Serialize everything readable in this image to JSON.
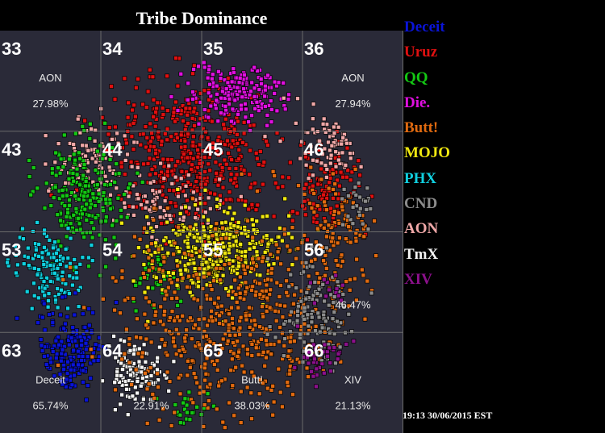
{
  "chart_data": {
    "type": "scatter",
    "title": "Tribe Dominance",
    "grid": {
      "rows": [
        {
          "sectors": [
            {
              "number": "33",
              "tribe": "AON",
              "pct": "27.98%"
            },
            {
              "number": "34",
              "tribe": "",
              "pct": ""
            },
            {
              "number": "35",
              "tribe": "",
              "pct": ""
            },
            {
              "number": "36",
              "tribe": "AON",
              "pct": "27.94%"
            }
          ]
        },
        {
          "sectors": [
            {
              "number": "43",
              "tribe": "",
              "pct": ""
            },
            {
              "number": "44",
              "tribe": "",
              "pct": ""
            },
            {
              "number": "45",
              "tribe": "",
              "pct": ""
            },
            {
              "number": "46",
              "tribe": "",
              "pct": ""
            }
          ]
        },
        {
          "sectors": [
            {
              "number": "53",
              "tribe": "",
              "pct": ""
            },
            {
              "number": "54",
              "tribe": "",
              "pct": ""
            },
            {
              "number": "55",
              "tribe": "",
              "pct": ""
            },
            {
              "number": "56",
              "tribe": "",
              "pct": "46.47%"
            }
          ]
        },
        {
          "sectors": [
            {
              "number": "63",
              "tribe": "Deceit",
              "pct": "65.74%"
            },
            {
              "number": "64",
              "tribe": "",
              "pct": "22.91%"
            },
            {
              "number": "65",
              "tribe": "Butt!",
              "pct": "38.03%"
            },
            {
              "number": "66",
              "tribe": "XIV",
              "pct": "21.13%"
            }
          ]
        }
      ]
    },
    "legend": [
      {
        "name": "Deceit",
        "color": "#0a14d8"
      },
      {
        "name": "Uruz",
        "color": "#e01010"
      },
      {
        "name": "QQ",
        "color": "#14c814"
      },
      {
        "name": "Die.",
        "color": "#e010e0"
      },
      {
        "name": "Butt!",
        "color": "#e06a10"
      },
      {
        "name": "MOJO",
        "color": "#f0e810"
      },
      {
        "name": "PHX",
        "color": "#10d0e0"
      },
      {
        "name": "CND",
        "color": "#8c8c8c"
      },
      {
        "name": "AON",
        "color": "#f0a8a8"
      },
      {
        "name": "TmX",
        "color": "#f4f4f4"
      },
      {
        "name": "XIV",
        "color": "#8c108c"
      }
    ],
    "villages": [
      {
        "tribe": "Uruz",
        "x": 0.47,
        "y": 0.3,
        "sx": 0.1,
        "sy": 0.09,
        "n": 520
      },
      {
        "tribe": "Uruz",
        "x": 0.8,
        "y": 0.38,
        "sx": 0.05,
        "sy": 0.06,
        "n": 120
      },
      {
        "tribe": "Die.",
        "x": 0.58,
        "y": 0.15,
        "sx": 0.055,
        "sy": 0.04,
        "n": 200
      },
      {
        "tribe": "AON",
        "x": 0.22,
        "y": 0.32,
        "sx": 0.05,
        "sy": 0.05,
        "n": 110
      },
      {
        "tribe": "AON",
        "x": 0.84,
        "y": 0.25,
        "sx": 0.05,
        "sy": 0.05,
        "n": 150
      },
      {
        "tribe": "AON",
        "x": 0.4,
        "y": 0.42,
        "sx": 0.07,
        "sy": 0.04,
        "n": 90
      },
      {
        "tribe": "QQ",
        "x": 0.2,
        "y": 0.4,
        "sx": 0.05,
        "sy": 0.07,
        "n": 230
      },
      {
        "tribe": "QQ",
        "x": 0.38,
        "y": 0.62,
        "sx": 0.03,
        "sy": 0.04,
        "n": 40
      },
      {
        "tribe": "QQ",
        "x": 0.46,
        "y": 0.94,
        "sx": 0.03,
        "sy": 0.02,
        "n": 25
      },
      {
        "tribe": "PHX",
        "x": 0.11,
        "y": 0.58,
        "sx": 0.04,
        "sy": 0.05,
        "n": 150
      },
      {
        "tribe": "Deceit",
        "x": 0.17,
        "y": 0.8,
        "sx": 0.04,
        "sy": 0.06,
        "n": 200
      },
      {
        "tribe": "TmX",
        "x": 0.33,
        "y": 0.85,
        "sx": 0.035,
        "sy": 0.04,
        "n": 120
      },
      {
        "tribe": "MOJO",
        "x": 0.52,
        "y": 0.54,
        "sx": 0.08,
        "sy": 0.05,
        "n": 420
      },
      {
        "tribe": "Butt!",
        "x": 0.58,
        "y": 0.72,
        "sx": 0.15,
        "sy": 0.12,
        "n": 620
      },
      {
        "tribe": "Butt!",
        "x": 0.84,
        "y": 0.5,
        "sx": 0.05,
        "sy": 0.07,
        "n": 120
      },
      {
        "tribe": "CND",
        "x": 0.78,
        "y": 0.7,
        "sx": 0.05,
        "sy": 0.07,
        "n": 150
      },
      {
        "tribe": "CND",
        "x": 0.88,
        "y": 0.42,
        "sx": 0.02,
        "sy": 0.03,
        "n": 25
      },
      {
        "tribe": "XIV",
        "x": 0.8,
        "y": 0.81,
        "sx": 0.03,
        "sy": 0.03,
        "n": 40
      },
      {
        "tribe": "XIV",
        "x": 0.82,
        "y": 0.64,
        "sx": 0.02,
        "sy": 0.02,
        "n": 12
      }
    ]
  },
  "timestamp": "19:13 30/06/2015 EST"
}
